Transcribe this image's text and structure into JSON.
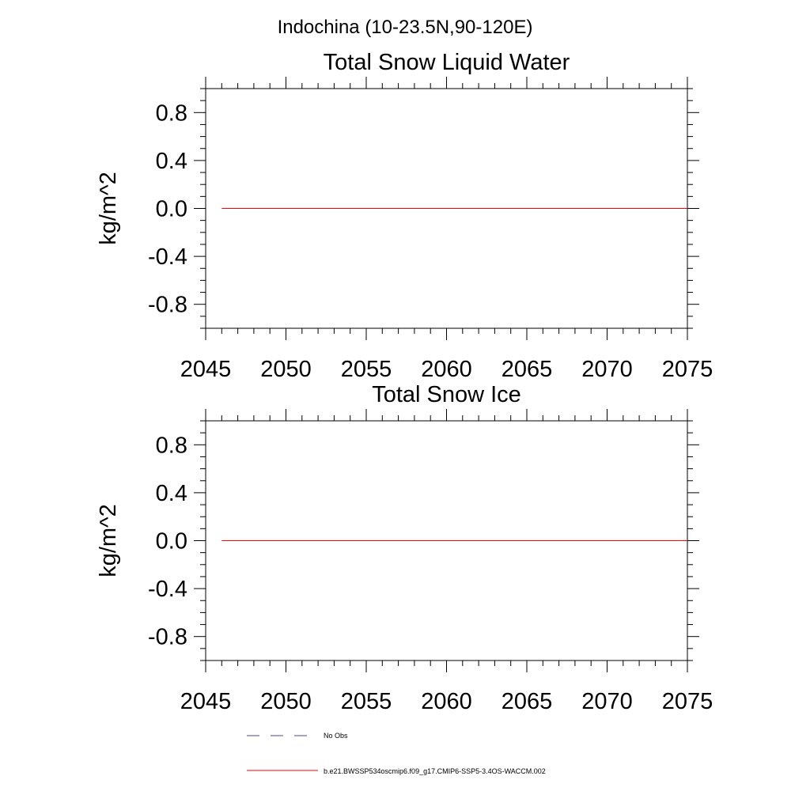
{
  "figure": {
    "region_title": "Indochina (10-23.5N,90-120E)"
  },
  "chart_data": [
    {
      "type": "line",
      "title": "Total Snow Liquid Water",
      "xlabel": "",
      "ylabel": "kg/m^2",
      "xlim": [
        2045,
        2075
      ],
      "ylim": [
        -1.0,
        1.0
      ],
      "xticks": [
        2045,
        2050,
        2055,
        2060,
        2065,
        2070,
        2075
      ],
      "xtick_labels": [
        "2045",
        "2050",
        "2055",
        "2060",
        "2065",
        "2070",
        "2075"
      ],
      "yticks": [
        0.8,
        0.4,
        0.0,
        -0.4,
        -0.8
      ],
      "ytick_labels": [
        "0.8",
        "0.4",
        "0.0",
        "-0.4",
        "-0.8"
      ],
      "grid": false,
      "series": [
        {
          "name": "b.e21.BWSSP534oscmip6.f09_g17.CMIP6-SSP5-3.4OS-WACCM.002",
          "color": "#ff0000",
          "x": [
            2046,
            2075
          ],
          "y": [
            0.0,
            0.0
          ]
        }
      ]
    },
    {
      "type": "line",
      "title": "Total Snow Ice",
      "xlabel": "",
      "ylabel": "kg/m^2",
      "xlim": [
        2045,
        2075
      ],
      "ylim": [
        -1.0,
        1.0
      ],
      "xticks": [
        2045,
        2050,
        2055,
        2060,
        2065,
        2070,
        2075
      ],
      "xtick_labels": [
        "2045",
        "2050",
        "2055",
        "2060",
        "2065",
        "2070",
        "2075"
      ],
      "yticks": [
        0.8,
        0.4,
        0.0,
        -0.4,
        -0.8
      ],
      "ytick_labels": [
        "0.8",
        "0.4",
        "0.0",
        "-0.4",
        "-0.8"
      ],
      "grid": false,
      "series": [
        {
          "name": "b.e21.BWSSP534oscmip6.f09_g17.CMIP6-SSP5-3.4OS-WACCM.002",
          "color": "#ff0000",
          "x": [
            2046,
            2075
          ],
          "y": [
            0.0,
            0.0
          ]
        }
      ]
    }
  ],
  "legend": {
    "placement": "bottom",
    "entries": [
      {
        "label": "No Obs",
        "style": "dashed",
        "color": "#4a4a8a"
      },
      {
        "label": "b.e21.BWSSP534oscmip6.f09_g17.CMIP6-SSP5-3.4OS-WACCM.002",
        "style": "solid",
        "color": "#ff0000"
      }
    ]
  }
}
